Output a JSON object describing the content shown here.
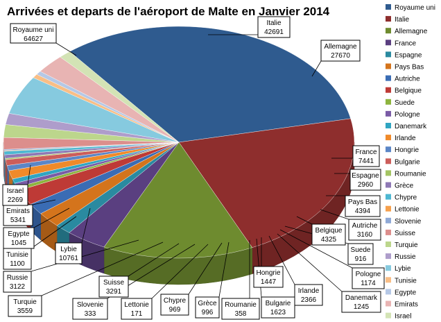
{
  "chart_data": {
    "type": "pie",
    "title": "Arrivées et departs de l'aéroport de Malte en Janvier 2014",
    "legend_position": "right",
    "series": [
      {
        "name": "Royaume uni",
        "value": 64627,
        "color": "#2F5B8F"
      },
      {
        "name": "Italie",
        "value": 42691,
        "color": "#8E2E2D"
      },
      {
        "name": "Allemagne",
        "value": 27670,
        "color": "#6E8B2F"
      },
      {
        "name": "France",
        "value": 7441,
        "color": "#5A3F80"
      },
      {
        "name": "Espagne",
        "value": 2960,
        "color": "#2A8AA0"
      },
      {
        "name": "Pays Bas",
        "value": 4394,
        "color": "#D4741C"
      },
      {
        "name": "Autriche",
        "value": 3160,
        "color": "#3A6CB4"
      },
      {
        "name": "Belgique",
        "value": 4325,
        "color": "#BE3A36"
      },
      {
        "name": "Suede",
        "value": 916,
        "color": "#8DB43E"
      },
      {
        "name": "Pologne",
        "value": 1174,
        "color": "#7A5BA6"
      },
      {
        "name": "Danemark",
        "value": 1245,
        "color": "#30A5C2"
      },
      {
        "name": "Irlande",
        "value": 2366,
        "color": "#F08A2A"
      },
      {
        "name": "Hongrie",
        "value": 1447,
        "color": "#5B86C6"
      },
      {
        "name": "Bulgarie",
        "value": 1623,
        "color": "#CC5D5A"
      },
      {
        "name": "Roumanie",
        "value": 358,
        "color": "#A4C463"
      },
      {
        "name": "Grèce",
        "value": 996,
        "color": "#8E78B5"
      },
      {
        "name": "Chypre",
        "value": 969,
        "color": "#4EB8D2"
      },
      {
        "name": "Lettonie",
        "value": 171,
        "color": "#F6A04C"
      },
      {
        "name": "Slovenie",
        "value": 333,
        "color": "#8FA9D6"
      },
      {
        "name": "Suisse",
        "value": 3291,
        "color": "#DC8E8C"
      },
      {
        "name": "Turquie",
        "value": 3559,
        "color": "#BCD68C"
      },
      {
        "name": "Russie",
        "value": 3122,
        "color": "#AE9DCB"
      },
      {
        "name": "Lybie",
        "value": 10761,
        "color": "#86CADF"
      },
      {
        "name": "Tunisie",
        "value": 1100,
        "color": "#F9BE86"
      },
      {
        "name": "Egypte",
        "value": 1045,
        "color": "#B5C8E6"
      },
      {
        "name": "Emirats",
        "value": 5341,
        "color": "#E8B4B3"
      },
      {
        "name": "Israel",
        "value": 2269,
        "color": "#D3E3B5"
      }
    ]
  }
}
